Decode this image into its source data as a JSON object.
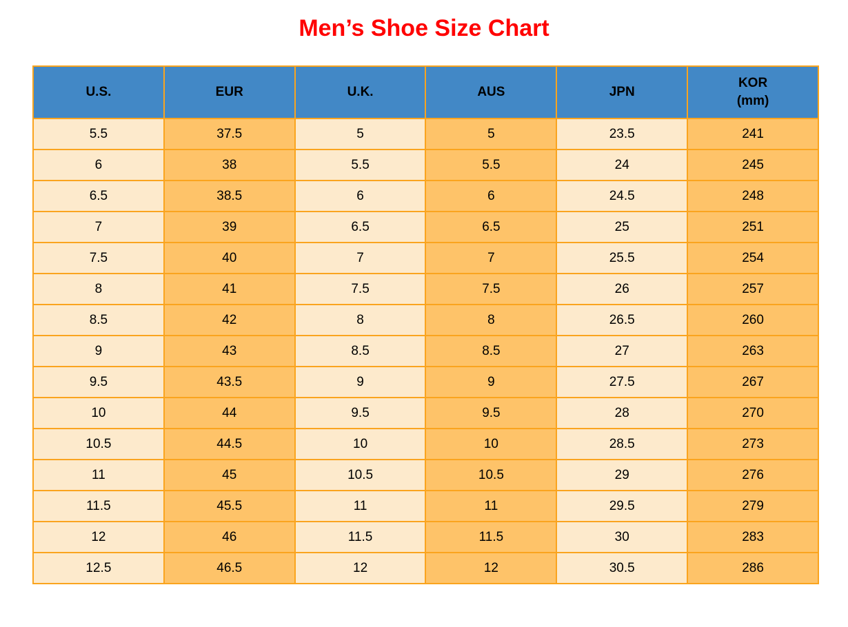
{
  "title": "Men’s Shoe Size Chart",
  "colors": {
    "title_text": "#ff0000",
    "header_bg": "#4288c6",
    "cell_light_bg": "#fdeacc",
    "cell_orange_bg": "#fec369",
    "grid_border": "#faa41e",
    "cell_text": "#000000"
  },
  "chart_data": {
    "type": "table",
    "title": "Men’s Shoe Size Chart",
    "columns": [
      {
        "label": "U.S.",
        "sublabel": ""
      },
      {
        "label": "EUR",
        "sublabel": ""
      },
      {
        "label": "U.K.",
        "sublabel": ""
      },
      {
        "label": "AUS",
        "sublabel": ""
      },
      {
        "label": "JPN",
        "sublabel": ""
      },
      {
        "label": "KOR",
        "sublabel": "(mm)"
      }
    ],
    "rows": [
      [
        "5.5",
        "37.5",
        "5",
        "5",
        "23.5",
        "241"
      ],
      [
        "6",
        "38",
        "5.5",
        "5.5",
        "24",
        "245"
      ],
      [
        "6.5",
        "38.5",
        "6",
        "6",
        "24.5",
        "248"
      ],
      [
        "7",
        "39",
        "6.5",
        "6.5",
        "25",
        "251"
      ],
      [
        "7.5",
        "40",
        "7",
        "7",
        "25.5",
        "254"
      ],
      [
        "8",
        "41",
        "7.5",
        "7.5",
        "26",
        "257"
      ],
      [
        "8.5",
        "42",
        "8",
        "8",
        "26.5",
        "260"
      ],
      [
        "9",
        "43",
        "8.5",
        "8.5",
        "27",
        "263"
      ],
      [
        "9.5",
        "43.5",
        "9",
        "9",
        "27.5",
        "267"
      ],
      [
        "10",
        "44",
        "9.5",
        "9.5",
        "28",
        "270"
      ],
      [
        "10.5",
        "44.5",
        "10",
        "10",
        "28.5",
        "273"
      ],
      [
        "11",
        "45",
        "10.5",
        "10.5",
        "29",
        "276"
      ],
      [
        "11.5",
        "45.5",
        "11",
        "11",
        "29.5",
        "279"
      ],
      [
        "12",
        "46",
        "11.5",
        "11.5",
        "30",
        "283"
      ],
      [
        "12.5",
        "46.5",
        "12",
        "12",
        "30.5",
        "286"
      ]
    ]
  }
}
